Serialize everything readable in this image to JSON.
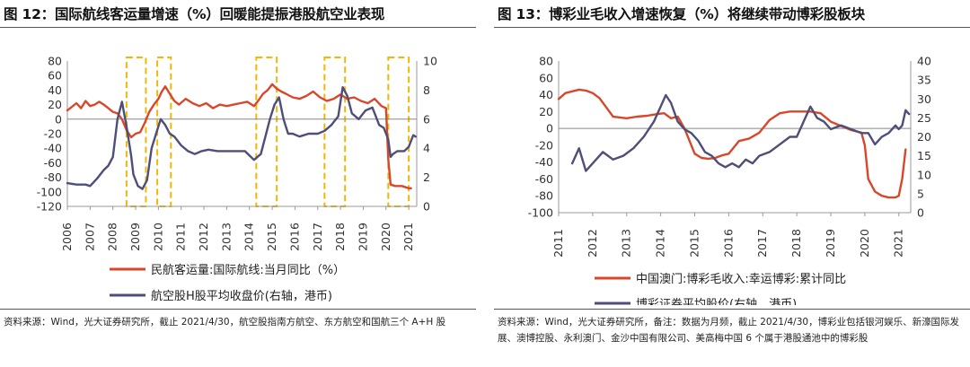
{
  "charts": [
    {
      "title": "图 12：国际航线客运量增速（%）回暖能提振港股航空业表现",
      "source": "资料来源：Wind，光大证券研究所，截止 2021/4/30，航空股指南方航空、东方航空和国航三个 A+H 股",
      "chart_data": {
        "type": "line",
        "title": "图 12：国际航线客运量增速（%）回暖能提振港股航空业表现",
        "x_ticks": [
          "2006",
          "2007",
          "2008",
          "2009",
          "2010",
          "2011",
          "2012",
          "2013",
          "2014",
          "2015",
          "2016",
          "2017",
          "2018",
          "2019",
          "2020",
          "2021"
        ],
        "xlim": [
          2006,
          2021.35
        ],
        "ylim_left": [
          -120,
          80
        ],
        "yticks_left": [
          -120,
          -100,
          -80,
          -60,
          -40,
          -20,
          0,
          20,
          40,
          60,
          80
        ],
        "ylim_right": [
          0,
          10
        ],
        "yticks_right": [
          0,
          2,
          4,
          6,
          8,
          10
        ],
        "grid": false,
        "legend_placement": "bottom",
        "highlight_boxes": [
          [
            2008.6,
            2009.45
          ],
          [
            2009.95,
            2010.55
          ],
          [
            2014.3,
            2015.2
          ],
          [
            2017.3,
            2018.2
          ],
          [
            2020.1,
            2021.0
          ]
        ],
        "series": [
          {
            "name": "民航客运量:国际航线:当月同比（%）",
            "axis": "left",
            "color": "#d9472b",
            "x": [
              2006.0,
              2006.2,
              2006.4,
              2006.6,
              2006.8,
              2007.0,
              2007.2,
              2007.4,
              2007.6,
              2007.8,
              2008.0,
              2008.2,
              2008.4,
              2008.6,
              2008.8,
              2009.0,
              2009.2,
              2009.4,
              2009.6,
              2009.8,
              2010.0,
              2010.15,
              2010.3,
              2010.5,
              2010.7,
              2010.9,
              2011.2,
              2011.5,
              2011.8,
              2012.1,
              2012.4,
              2012.7,
              2013.0,
              2013.3,
              2013.6,
              2013.9,
              2014.2,
              2014.4,
              2014.6,
              2014.8,
              2015.0,
              2015.2,
              2015.4,
              2015.6,
              2015.9,
              2016.2,
              2016.5,
              2016.8,
              2017.1,
              2017.4,
              2017.7,
              2018.0,
              2018.3,
              2018.6,
              2018.9,
              2019.2,
              2019.5,
              2019.8,
              2020.0,
              2020.1,
              2020.2,
              2020.4,
              2020.7,
              2021.0,
              2021.1
            ],
            "y": [
              12,
              17,
              22,
              15,
              25,
              18,
              20,
              24,
              20,
              15,
              10,
              8,
              0,
              -15,
              -25,
              -20,
              -18,
              -5,
              10,
              20,
              28,
              38,
              45,
              35,
              25,
              20,
              28,
              22,
              18,
              22,
              15,
              20,
              18,
              20,
              22,
              24,
              18,
              26,
              35,
              40,
              48,
              42,
              38,
              35,
              30,
              28,
              32,
              38,
              30,
              25,
              28,
              34,
              28,
              30,
              25,
              22,
              28,
              18,
              15,
              -55,
              -90,
              -92,
              -92,
              -95,
              -95
            ]
          },
          {
            "name": "航空股H股平均收盘价(右轴，港币)",
            "axis": "right",
            "color": "#4e4e79",
            "x": [
              2006.0,
              2006.4,
              2006.8,
              2007.0,
              2007.3,
              2007.6,
              2007.8,
              2008.0,
              2008.2,
              2008.4,
              2008.6,
              2008.8,
              2008.9,
              2009.1,
              2009.3,
              2009.5,
              2009.7,
              2009.9,
              2010.1,
              2010.3,
              2010.5,
              2010.7,
              2011.0,
              2011.3,
              2011.6,
              2011.9,
              2012.2,
              2012.6,
              2013.0,
              2013.4,
              2013.8,
              2014.2,
              2014.5,
              2014.7,
              2014.9,
              2015.1,
              2015.3,
              2015.5,
              2015.7,
              2015.9,
              2016.2,
              2016.6,
              2017.0,
              2017.3,
              2017.6,
              2017.9,
              2018.1,
              2018.3,
              2018.5,
              2018.8,
              2019.1,
              2019.4,
              2019.7,
              2019.9,
              2020.1,
              2020.2,
              2020.3,
              2020.5,
              2020.8,
              2021.0,
              2021.2,
              2021.3
            ],
            "y": [
              1.6,
              1.5,
              1.5,
              1.4,
              1.9,
              2.5,
              2.8,
              3.4,
              6.0,
              7.2,
              5.5,
              3.5,
              2.2,
              1.4,
              1.2,
              1.8,
              4.0,
              5.0,
              6.0,
              5.6,
              5.0,
              4.8,
              4.2,
              3.8,
              3.6,
              3.8,
              3.9,
              3.8,
              3.8,
              3.8,
              3.8,
              3.2,
              3.6,
              4.8,
              6.0,
              7.0,
              7.5,
              6.0,
              5.0,
              5.0,
              4.8,
              5.0,
              5.0,
              5.2,
              5.6,
              6.2,
              8.2,
              7.6,
              6.4,
              6.0,
              6.6,
              6.8,
              5.6,
              5.4,
              4.6,
              3.4,
              3.6,
              3.8,
              3.8,
              4.1,
              4.9,
              4.8
            ]
          }
        ]
      }
    },
    {
      "title": "图 13：博彩业毛收入增速恢复（%）将继续带动博彩股板块",
      "source": "资料来源：Wind，光大证券研究所，备注：数据为月频，截止 2021/4/30，博彩业包括银河娱乐、新濠国际发展、澳博控股、永利澳门、金沙中国有限公司、美高梅中国 6 个属于港股通池中的博彩股",
      "chart_data": {
        "type": "line",
        "title": "图 13：博彩业毛收入增速恢复（%）将继续带动博彩股板块",
        "x_ticks": [
          "2011",
          "2012",
          "2013",
          "2014",
          "2015",
          "2016",
          "2017",
          "2018",
          "2019",
          "2020",
          "2021"
        ],
        "xlim": [
          2011,
          2021.35
        ],
        "ylim_left": [
          -100,
          80
        ],
        "yticks_left": [
          -100,
          -80,
          -60,
          -40,
          -20,
          0,
          20,
          40,
          60,
          80
        ],
        "ylim_right": [
          0,
          40
        ],
        "yticks_right": [
          0,
          5,
          10,
          15,
          20,
          25,
          30,
          35,
          40
        ],
        "grid": false,
        "legend_placement": "bottom",
        "series": [
          {
            "name": "中国澳门:博彩毛收入:幸运博彩:累计同比",
            "axis": "left",
            "color": "#d9472b",
            "x": [
              2011.0,
              2011.2,
              2011.4,
              2011.6,
              2011.8,
              2012.0,
              2012.2,
              2012.4,
              2012.6,
              2012.8,
              2013.0,
              2013.3,
              2013.6,
              2013.9,
              2014.1,
              2014.3,
              2014.5,
              2014.7,
              2014.9,
              2015.0,
              2015.2,
              2015.4,
              2015.6,
              2015.8,
              2016.0,
              2016.3,
              2016.6,
              2016.9,
              2017.2,
              2017.5,
              2017.8,
              2018.1,
              2018.4,
              2018.7,
              2019.0,
              2019.3,
              2019.6,
              2019.9,
              2020.0,
              2020.1,
              2020.3,
              2020.5,
              2020.7,
              2020.9,
              2021.0,
              2021.1,
              2021.2
            ],
            "y": [
              35,
              42,
              44,
              46,
              45,
              42,
              36,
              25,
              14,
              13,
              12,
              14,
              15,
              17,
              18,
              12,
              14,
              0,
              -20,
              -30,
              -35,
              -36,
              -35,
              -32,
              -30,
              -15,
              -12,
              -5,
              10,
              18,
              20,
              20,
              20,
              18,
              8,
              3,
              -2,
              -5,
              -20,
              -60,
              -75,
              -80,
              -82,
              -82,
              -80,
              -60,
              -25
            ]
          },
          {
            "name": "博彩证券平均股价(右轴，港币)",
            "axis": "right",
            "color": "#4e4e79",
            "x": [
              2011.4,
              2011.6,
              2011.8,
              2012.0,
              2012.3,
              2012.6,
              2012.9,
              2013.2,
              2013.5,
              2013.8,
              2014.0,
              2014.15,
              2014.3,
              2014.5,
              2014.7,
              2014.9,
              2015.1,
              2015.3,
              2015.5,
              2015.7,
              2015.9,
              2016.1,
              2016.3,
              2016.5,
              2016.7,
              2016.9,
              2017.2,
              2017.5,
              2017.8,
              2018.0,
              2018.2,
              2018.4,
              2018.6,
              2018.8,
              2019.0,
              2019.3,
              2019.6,
              2019.9,
              2020.1,
              2020.3,
              2020.5,
              2020.7,
              2020.9,
              2021.0,
              2021.1,
              2021.2,
              2021.3
            ],
            "y": [
              13,
              17,
              11,
              13,
              16,
              14,
              15,
              17,
              20,
              24,
              28,
              31,
              29,
              24,
              22,
              21,
              19,
              16,
              15,
              13,
              12,
              13,
              12,
              14,
              13,
              15,
              16,
              18,
              20,
              20,
              24,
              28,
              25,
              24,
              22,
              23,
              22,
              21,
              21,
              18,
              20,
              21,
              23,
              22,
              23,
              27,
              26
            ]
          }
        ]
      }
    }
  ]
}
